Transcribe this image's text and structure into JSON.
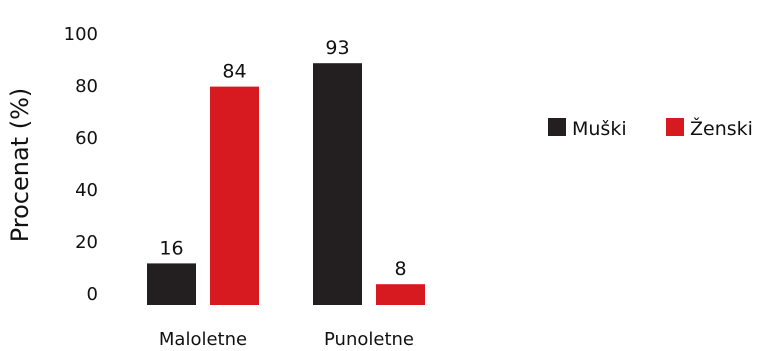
{
  "chart_data": {
    "type": "bar",
    "categories": [
      "Maloletne",
      "Punoletne"
    ],
    "series": [
      {
        "name": "Muški",
        "values": [
          16,
          93
        ],
        "color": "#231f20"
      },
      {
        "name": "Ženski",
        "values": [
          84,
          8
        ],
        "color": "#d71920"
      }
    ],
    "xlabel": "",
    "ylabel": "Procenat (%)",
    "ylim": [
      0,
      100
    ],
    "yticks": [
      0,
      20,
      40,
      60,
      80,
      100
    ],
    "grid": false,
    "legend_position": "right"
  }
}
